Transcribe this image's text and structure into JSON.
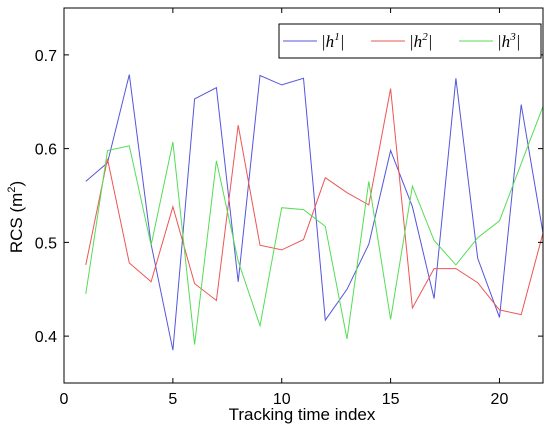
{
  "chart_data": {
    "type": "line",
    "xlabel": "Tracking time index",
    "ylabel": "RCS (m",
    "ylabel_sup": "2",
    "ylabel_close": ")",
    "xlim": [
      0,
      22
    ],
    "ylim": [
      0.35,
      0.75
    ],
    "xticks": [
      0,
      5,
      10,
      15,
      20
    ],
    "xtick_labels": [
      "0",
      "5",
      "10",
      "15",
      "20"
    ],
    "yticks": [
      0.4,
      0.5,
      0.6,
      0.7
    ],
    "ytick_labels": [
      "0.4",
      "0.5",
      "0.6",
      "0.7"
    ],
    "grid": false,
    "legend_position": "top-right",
    "x": [
      1,
      2,
      3,
      4,
      5,
      6,
      7,
      8,
      9,
      10,
      11,
      12,
      13,
      14,
      15,
      16,
      17,
      18,
      19,
      20,
      21,
      22
    ],
    "series": [
      {
        "name": "|h1|",
        "label_base": "|h",
        "label_sup": "1",
        "label_end": "|",
        "color": "#5555dd",
        "values": [
          0.565,
          0.585,
          0.679,
          0.498,
          0.385,
          0.653,
          0.665,
          0.458,
          0.678,
          0.668,
          0.675,
          0.417,
          0.45,
          0.498,
          0.598,
          0.538,
          0.44,
          0.675,
          0.483,
          0.42,
          0.647,
          0.51
        ]
      },
      {
        "name": "|h2|",
        "label_base": "|h",
        "label_sup": "2",
        "label_end": "|",
        "color": "#ee5555",
        "values": [
          0.476,
          0.589,
          0.478,
          0.458,
          0.538,
          0.456,
          0.438,
          0.625,
          0.497,
          0.492,
          0.503,
          0.569,
          0.553,
          0.54,
          0.664,
          0.43,
          0.472,
          0.472,
          0.457,
          0.428,
          0.423,
          0.51
        ]
      },
      {
        "name": "|h3|",
        "label_base": "|h",
        "label_sup": "3",
        "label_end": "|",
        "color": "#55dd55",
        "values": [
          0.445,
          0.598,
          0.603,
          0.497,
          0.607,
          0.391,
          0.587,
          0.48,
          0.411,
          0.537,
          0.535,
          0.517,
          0.397,
          0.565,
          0.418,
          0.56,
          0.502,
          0.476,
          0.505,
          0.523,
          0.584,
          0.645
        ]
      }
    ]
  }
}
